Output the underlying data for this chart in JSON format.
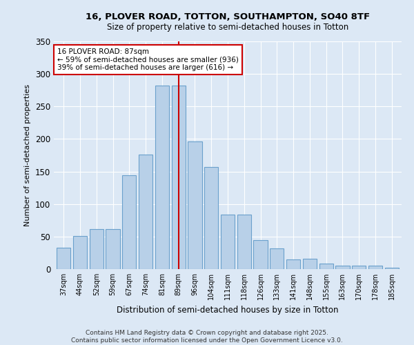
{
  "title1": "16, PLOVER ROAD, TOTTON, SOUTHAMPTON, SO40 8TF",
  "title2": "Size of property relative to semi-detached houses in Totton",
  "xlabel": "Distribution of semi-detached houses by size in Totton",
  "ylabel": "Number of semi-detached properties",
  "categories": [
    "37sqm",
    "44sqm",
    "52sqm",
    "59sqm",
    "67sqm",
    "74sqm",
    "81sqm",
    "89sqm",
    "96sqm",
    "104sqm",
    "111sqm",
    "118sqm",
    "126sqm",
    "133sqm",
    "141sqm",
    "148sqm",
    "155sqm",
    "163sqm",
    "170sqm",
    "178sqm",
    "185sqm"
  ],
  "values": [
    33,
    51,
    61,
    61,
    144,
    176,
    282,
    282,
    196,
    157,
    84,
    84,
    45,
    32,
    15,
    16,
    9,
    5,
    5,
    5,
    2
  ],
  "bar_color": "#b8d0e8",
  "bar_edge_color": "#6aa0cc",
  "vline_color": "#cc0000",
  "annotation_text": "16 PLOVER ROAD: 87sqm\n← 59% of semi-detached houses are smaller (936)\n39% of semi-detached houses are larger (616) →",
  "annotation_box_color": "#ffffff",
  "annotation_box_edge": "#cc0000",
  "ylim": [
    0,
    350
  ],
  "yticks": [
    0,
    50,
    100,
    150,
    200,
    250,
    300,
    350
  ],
  "footer": "Contains HM Land Registry data © Crown copyright and database right 2025.\nContains public sector information licensed under the Open Government Licence v3.0.",
  "bg_color": "#dce8f5",
  "plot_bg_color": "#dce8f5",
  "vline_xidx": 7
}
